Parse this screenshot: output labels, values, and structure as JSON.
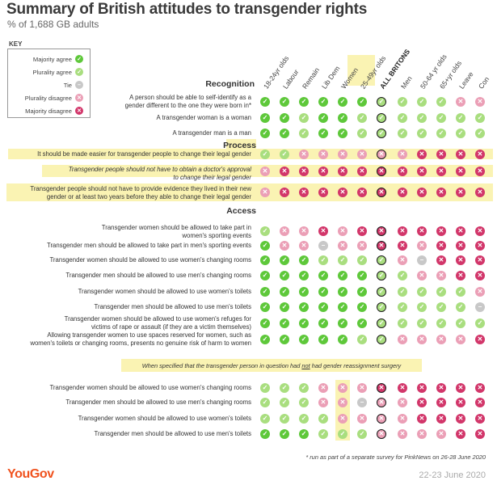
{
  "title": "Summary of British attitudes to transgender rights",
  "subtitle": "% of 1,688 GB adults",
  "key": {
    "title": "KEY",
    "items": [
      {
        "label": "Majority agree",
        "code": "MA"
      },
      {
        "label": "Plurality agree",
        "code": "PA"
      },
      {
        "label": "Tie",
        "code": "T"
      },
      {
        "label": "Plurality disagree",
        "code": "PD"
      },
      {
        "label": "Majority disagree",
        "code": "MD"
      }
    ]
  },
  "colors": {
    "MA": "#5ec83a",
    "PA": "#a9de7f",
    "T": "#c8c8c8",
    "PD": "#eb9fb6",
    "MD": "#d2366a",
    "hl": "#f6ec9a"
  },
  "columns": [
    "18-24yr olds",
    "Labour",
    "Remain",
    "Lib Dem",
    "Women",
    "25-49yr olds",
    "ALL BRITONS",
    "Men",
    "50-64 yr olds",
    "65+yr olds",
    "Leave",
    "Con"
  ],
  "sections": {
    "recognition": "Recognition",
    "process": "Process",
    "access": "Access"
  },
  "note": {
    "before": "When specified that the transgender person in question had ",
    "underlined": "not",
    "after": " had gender reassignment surgery"
  },
  "chart_data": {
    "type": "table",
    "title": "Summary of British attitudes to transgender rights",
    "subtitle": "% of 1,688 GB adults",
    "columns": [
      "18-24yr olds",
      "Labour",
      "Remain",
      "Lib Dem",
      "Women",
      "25-49yr olds",
      "ALL BRITONS",
      "Men",
      "50-64 yr olds",
      "65+yr olds",
      "Leave",
      "Con"
    ],
    "rows": [
      {
        "label": [
          "A person should be able to self-identify as a",
          "gender different to the one they were born in*"
        ],
        "values": [
          "MA",
          "MA",
          "MA",
          "MA",
          "MA",
          "MA",
          "PA",
          "PA",
          "PA",
          "PA",
          "PD",
          "PD"
        ]
      },
      {
        "label": [
          "A transgender woman is a woman"
        ],
        "values": [
          "MA",
          "MA",
          "PA",
          "MA",
          "MA",
          "PA",
          "PA",
          "PA",
          "PA",
          "PA",
          "PA",
          "PA"
        ]
      },
      {
        "label": [
          "A transgender man is a man"
        ],
        "values": [
          "MA",
          "MA",
          "PA",
          "MA",
          "MA",
          "PA",
          "PA",
          "PA",
          "PA",
          "PA",
          "PA",
          "PA"
        ]
      },
      {
        "label": [
          "It should be made easier for transgender people to change their legal gender"
        ],
        "values": [
          "PA",
          "PA",
          "PD",
          "PD",
          "PD",
          "PD",
          "PD",
          "PD",
          "MD",
          "MD",
          "MD",
          "MD"
        ]
      },
      {
        "label": [
          "Transgender people should not have to obtain a doctor's approval",
          "to change their legal gender"
        ],
        "values": [
          "PD",
          "MD",
          "MD",
          "MD",
          "MD",
          "MD",
          "MD",
          "MD",
          "MD",
          "MD",
          "MD",
          "MD"
        ]
      },
      {
        "label": [
          "Transgender people should not have to provide evidence they lived in their new",
          "gender or at least two years before they able to change their legal gender"
        ],
        "values": [
          "PD",
          "MD",
          "MD",
          "MD",
          "MD",
          "MD",
          "MD",
          "MD",
          "MD",
          "MD",
          "MD",
          "MD"
        ]
      },
      {
        "label": [
          "Transgender women should be allowed to take part in",
          "women's sporting events"
        ],
        "values": [
          "PA",
          "PD",
          "PD",
          "MD",
          "PD",
          "MD",
          "MD",
          "MD",
          "MD",
          "MD",
          "MD",
          "MD"
        ]
      },
      {
        "label": [
          "Transgender men should be allowed to take part in men's sporting events"
        ],
        "values": [
          "MA",
          "PD",
          "PD",
          "T",
          "PD",
          "PD",
          "MD",
          "MD",
          "PD",
          "MD",
          "MD",
          "MD"
        ]
      },
      {
        "label": [
          "Transgender women should be allowed to use women's changing rooms"
        ],
        "values": [
          "MA",
          "MA",
          "MA",
          "PA",
          "PA",
          "PA",
          "PA",
          "PD",
          "T",
          "MD",
          "MD",
          "MD"
        ]
      },
      {
        "label": [
          "Transgender men should be allowed to use men's changing rooms"
        ],
        "values": [
          "MA",
          "MA",
          "MA",
          "MA",
          "MA",
          "MA",
          "PA",
          "PA",
          "PD",
          "PD",
          "MD",
          "MD"
        ]
      },
      {
        "label": [
          "Transgender women should be allowed to use women's toilets"
        ],
        "values": [
          "MA",
          "MA",
          "MA",
          "MA",
          "MA",
          "MA",
          "PA",
          "PA",
          "PA",
          "PA",
          "PA",
          "PD"
        ]
      },
      {
        "label": [
          "Transgender men should be allowed to use men's toilets"
        ],
        "values": [
          "MA",
          "MA",
          "MA",
          "MA",
          "MA",
          "MA",
          "PA",
          "PA",
          "PA",
          "PA",
          "PA",
          "T"
        ]
      },
      {
        "label": [
          "Transgender women should be allowed to use women's refuges for",
          "victims of rape or assault (if they are a victim themselves)"
        ],
        "values": [
          "MA",
          "MA",
          "MA",
          "MA",
          "MA",
          "MA",
          "PA",
          "PA",
          "PA",
          "PA",
          "PA",
          "PA"
        ]
      },
      {
        "label": [
          "Allowing transgender women to use spaces reserved for women, such as",
          "women's toilets or changing rooms, presents no genuine risk of harm to women"
        ],
        "values": [
          "MA",
          "MA",
          "MA",
          "MA",
          "MA",
          "PA",
          "PA",
          "PD",
          "PD",
          "PD",
          "PD",
          "MD"
        ]
      },
      {
        "label": [
          "Transgender women should be allowed to use women's changing rooms"
        ],
        "values": [
          "PA",
          "PA",
          "PA",
          "PD",
          "PD",
          "PD",
          "MD",
          "MD",
          "MD",
          "MD",
          "MD",
          "MD"
        ]
      },
      {
        "label": [
          "Transgender men should be allowed to use men's changing rooms"
        ],
        "values": [
          "PA",
          "PA",
          "PA",
          "PD",
          "PD",
          "T",
          "PD",
          "PD",
          "MD",
          "MD",
          "MD",
          "MD"
        ]
      },
      {
        "label": [
          "Transgender women should be allowed to use women's toilets"
        ],
        "values": [
          "PA",
          "PA",
          "PA",
          "PA",
          "PD",
          "PD",
          "PD",
          "PD",
          "MD",
          "MD",
          "MD",
          "MD"
        ]
      },
      {
        "label": [
          "Transgender men should be allowed to use men's toilets"
        ],
        "values": [
          "MA",
          "MA",
          "MA",
          "PA",
          "PA",
          "PA",
          "PD",
          "PD",
          "PD",
          "PD",
          "MD",
          "MD"
        ]
      }
    ]
  },
  "footnote": "* run as part of a separate survey for PinkNews on 26-28 June 2020",
  "logo": "YouGov",
  "date": "22-23 June 2020"
}
